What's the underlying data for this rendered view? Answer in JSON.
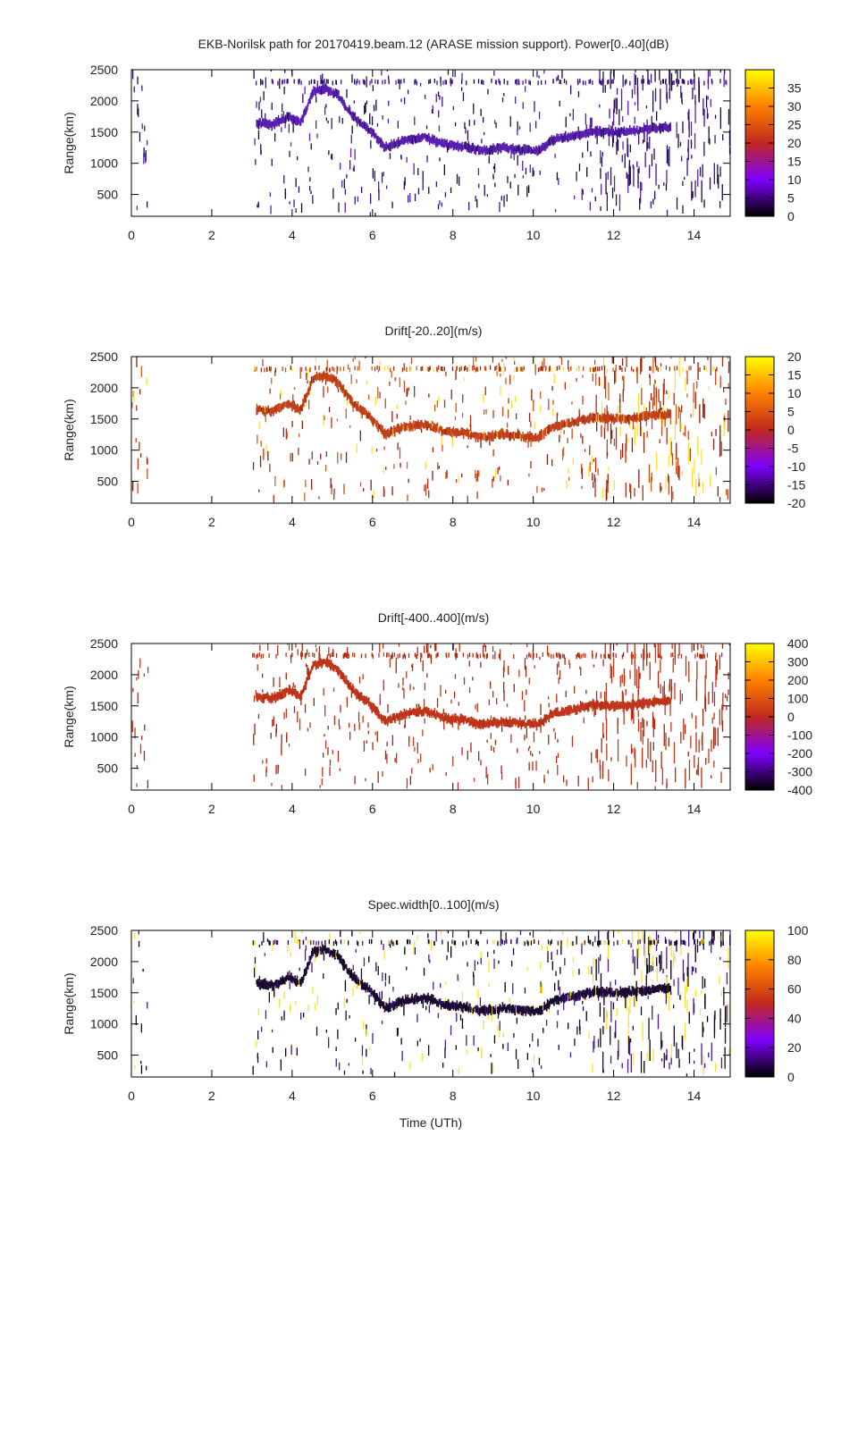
{
  "chart_data": [
    {
      "type": "heatmap",
      "title": "EKB-Norilsk path for 20170419.beam.12 (ARASE mission support). Power[0..40](dB)",
      "xlabel": "",
      "ylabel": "Range(km)",
      "xlim": [
        0,
        14.9
      ],
      "ylim": [
        150,
        2500
      ],
      "x_ticks": [
        "0",
        "2",
        "4",
        "6",
        "8",
        "10",
        "12",
        "14"
      ],
      "y_ticks": [
        "500",
        "1000",
        "1500",
        "2000",
        "2500"
      ],
      "colorbar": {
        "min": 0,
        "max": 40,
        "ticks": [
          "0",
          "5",
          "10",
          "15",
          "20",
          "25",
          "30",
          "35"
        ],
        "palette": [
          "#000000",
          "#7f00ff",
          "#c0281e",
          "#ff8000",
          "#ffff00"
        ]
      },
      "trace_color": "#5a1fb0",
      "noise_colors": [
        "#1a0840",
        "#3a1490",
        "#5a1fb0",
        "#2a0a60"
      ],
      "trace": {
        "x": [
          3.1,
          3.5,
          3.9,
          4.2,
          4.5,
          4.8,
          5.1,
          5.5,
          5.9,
          6.3,
          6.8,
          7.3,
          7.8,
          8.3,
          8.7,
          9.2,
          9.7,
          10.1,
          10.5,
          11.0,
          11.5,
          12.0,
          12.5,
          13.0,
          13.4
        ],
        "y": [
          1650,
          1620,
          1750,
          1650,
          2150,
          2200,
          2100,
          1750,
          1550,
          1250,
          1380,
          1420,
          1300,
          1270,
          1200,
          1250,
          1220,
          1200,
          1380,
          1450,
          1520,
          1500,
          1520,
          1560,
          1580
        ]
      }
    },
    {
      "type": "heatmap",
      "title": "Drift[-20..20](m/s)",
      "xlabel": "",
      "ylabel": "Range(km)",
      "xlim": [
        0,
        14.9
      ],
      "ylim": [
        150,
        2500
      ],
      "x_ticks": [
        "0",
        "2",
        "4",
        "6",
        "8",
        "10",
        "12",
        "14"
      ],
      "y_ticks": [
        "500",
        "1000",
        "1500",
        "2000",
        "2500"
      ],
      "colorbar": {
        "min": -20,
        "max": 20,
        "ticks": [
          "-20",
          "-15",
          "-10",
          "-5",
          "0",
          "5",
          "10",
          "15",
          "20"
        ],
        "palette": [
          "#000000",
          "#7f00ff",
          "#c0281e",
          "#ff8000",
          "#ffff00"
        ]
      },
      "trace_color": "#c0401a",
      "noise_colors": [
        "#b03010",
        "#c84a1a",
        "#8a2010",
        "#d06020",
        "#ffe030"
      ],
      "trace": {
        "x": [
          3.1,
          3.5,
          3.9,
          4.2,
          4.5,
          4.8,
          5.1,
          5.5,
          5.9,
          6.3,
          6.8,
          7.3,
          7.8,
          8.3,
          8.7,
          9.2,
          9.7,
          10.1,
          10.5,
          11.0,
          11.5,
          12.0,
          12.5,
          13.0,
          13.4
        ],
        "y": [
          1650,
          1620,
          1750,
          1650,
          2150,
          2200,
          2100,
          1750,
          1550,
          1250,
          1380,
          1420,
          1300,
          1270,
          1200,
          1250,
          1220,
          1200,
          1380,
          1450,
          1520,
          1500,
          1520,
          1560,
          1580
        ]
      }
    },
    {
      "type": "heatmap",
      "title": "Drift[-400..400](m/s)",
      "xlabel": "",
      "ylabel": "Range(km)",
      "xlim": [
        0,
        14.9
      ],
      "ylim": [
        150,
        2500
      ],
      "x_ticks": [
        "0",
        "2",
        "4",
        "6",
        "8",
        "10",
        "12",
        "14"
      ],
      "y_ticks": [
        "500",
        "1000",
        "1500",
        "2000",
        "2500"
      ],
      "colorbar": {
        "min": -400,
        "max": 400,
        "ticks": [
          "-400",
          "-300",
          "-200",
          "-100",
          "0",
          "100",
          "200",
          "300",
          "400"
        ],
        "palette": [
          "#000000",
          "#7f00ff",
          "#c0281e",
          "#ff8000",
          "#ffff00"
        ]
      },
      "trace_color": "#c0341a",
      "noise_colors": [
        "#b83018",
        "#c23a1c",
        "#a02810"
      ],
      "trace": {
        "x": [
          3.1,
          3.5,
          3.9,
          4.2,
          4.5,
          4.8,
          5.1,
          5.5,
          5.9,
          6.3,
          6.8,
          7.3,
          7.8,
          8.3,
          8.7,
          9.2,
          9.7,
          10.1,
          10.5,
          11.0,
          11.5,
          12.0,
          12.5,
          13.0,
          13.4
        ],
        "y": [
          1650,
          1620,
          1750,
          1650,
          2150,
          2200,
          2100,
          1750,
          1550,
          1250,
          1380,
          1420,
          1300,
          1270,
          1200,
          1250,
          1220,
          1200,
          1380,
          1450,
          1520,
          1500,
          1520,
          1560,
          1580
        ]
      }
    },
    {
      "type": "heatmap",
      "title": "Spec.width[0..100](m/s)",
      "xlabel": "Time (UTh)",
      "ylabel": "Range(km)",
      "xlim": [
        0,
        14.9
      ],
      "ylim": [
        150,
        2500
      ],
      "x_ticks": [
        "0",
        "2",
        "4",
        "6",
        "8",
        "10",
        "12",
        "14"
      ],
      "y_ticks": [
        "500",
        "1000",
        "1500",
        "2000",
        "2500"
      ],
      "colorbar": {
        "min": 0,
        "max": 100,
        "ticks": [
          "0",
          "20",
          "40",
          "60",
          "80",
          "100"
        ],
        "palette": [
          "#000000",
          "#7f00ff",
          "#c0281e",
          "#ff8000",
          "#ffff00"
        ]
      },
      "trace_color": "#1a0a30",
      "noise_colors": [
        "#000000",
        "#1a0a30",
        "#4a1a90",
        "#ffe030"
      ],
      "trace": {
        "x": [
          3.1,
          3.5,
          3.9,
          4.2,
          4.5,
          4.8,
          5.1,
          5.5,
          5.9,
          6.3,
          6.8,
          7.3,
          7.8,
          8.3,
          8.7,
          9.2,
          9.7,
          10.1,
          10.5,
          11.0,
          11.5,
          12.0,
          12.5,
          13.0,
          13.4
        ],
        "y": [
          1650,
          1620,
          1750,
          1650,
          2150,
          2200,
          2100,
          1750,
          1550,
          1250,
          1380,
          1420,
          1300,
          1270,
          1200,
          1250,
          1220,
          1200,
          1380,
          1450,
          1520,
          1500,
          1520,
          1560,
          1580
        ]
      }
    }
  ]
}
